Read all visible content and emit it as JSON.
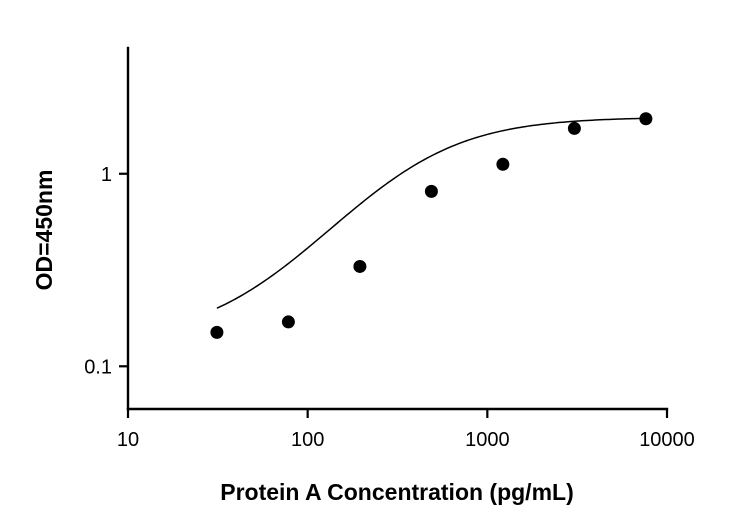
{
  "chart_data": {
    "type": "scatter",
    "title": "",
    "xlabel": "Protein A Concentration (pg/mL)",
    "ylabel": "OD=450nm",
    "x_scale": "log",
    "y_scale": "log",
    "xlim": [
      10,
      10000
    ],
    "ylim": [
      0.06,
      4.5
    ],
    "x_ticks": [
      10,
      100,
      1000,
      10000
    ],
    "x_tick_labels": [
      "10",
      "100",
      "1000",
      "10000"
    ],
    "y_ticks": [
      0.1,
      1
    ],
    "y_tick_labels": [
      "0.1",
      "1"
    ],
    "grid": false,
    "legend": "none",
    "series": [
      {
        "x": [
          31.25,
          78.125,
          195.3,
          488.3,
          1220.7,
          3051.8,
          7629.4
        ],
        "y": [
          0.15,
          0.17,
          0.33,
          0.81,
          1.12,
          1.72,
          1.93
        ]
      }
    ],
    "fit_curve": {
      "model": "4PL",
      "bottom": 0.135,
      "top": 1.97,
      "ec50": 360,
      "hill": 1.35,
      "x_range": [
        31.25,
        7629.4
      ]
    },
    "colors": {
      "axis": "#000000",
      "points": "#000000",
      "curve": "#000000"
    }
  }
}
